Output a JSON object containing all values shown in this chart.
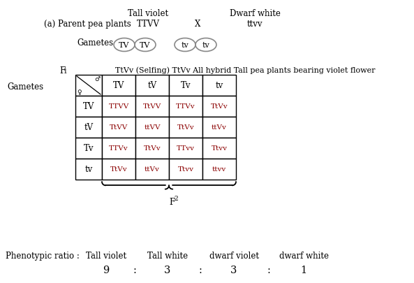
{
  "parent_label": "(a) Parent pea plants",
  "tall_violet": "Tall violet",
  "dwarf_white": "Dwarf white",
  "parent_TTVV": "TTVV",
  "parent_ttvv": "ttvv",
  "cross_symbol": "X",
  "gametes_label": "Gametes",
  "gametes_left": [
    "TV",
    "TV"
  ],
  "gametes_right": [
    "tv",
    "tv"
  ],
  "f1_label": "F",
  "f1_sub": "1",
  "f1_text": "TtVv (Selfing) TtVv All hybrid Tall pea plants bearing violet flower",
  "gametes_label2": "Gametes",
  "male_sym": "♂",
  "female_sym": "♀",
  "col_headers": [
    "TV",
    "tV",
    "Tv",
    "tv"
  ],
  "row_headers": [
    "TV",
    "tV",
    "Tv",
    "tv"
  ],
  "punnett": [
    [
      "TTVV",
      "TtVV",
      "TTVv",
      "TtVv"
    ],
    [
      "TtVV",
      "ttVV",
      "TtVv",
      "ttVv"
    ],
    [
      "TTVv",
      "TtVv",
      "TTvv",
      "Ttvv"
    ],
    [
      "TtVv",
      "ttVv",
      "Ttvv",
      "ttvv"
    ]
  ],
  "f2_label": "F",
  "f2_sub": "2",
  "phenotypic_ratio_label": "Phenotypic ratio :",
  "phenotypes": [
    "Tall violet",
    "Tall white",
    "dwarf violet",
    "dwarf white"
  ],
  "ratio_nums": [
    "9",
    "3",
    "3",
    "1"
  ],
  "bg_color": "#ffffff",
  "text_color": "#000000",
  "dark_red": "#8B0000",
  "grid_color": "#000000",
  "gamete_edge": "#888888"
}
